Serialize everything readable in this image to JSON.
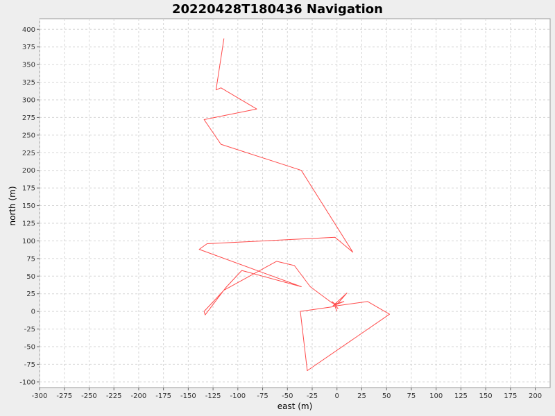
{
  "chart_data": {
    "type": "line",
    "title": "20220428T180436 Navigation",
    "xlabel": "east (m)",
    "ylabel": "north (m)",
    "xlim": [
      -300,
      215
    ],
    "ylim": [
      -108,
      415
    ],
    "xticks": [
      -300,
      -275,
      -250,
      -225,
      -200,
      -175,
      -150,
      -125,
      -100,
      -75,
      -50,
      -25,
      0,
      25,
      50,
      75,
      100,
      125,
      150,
      175,
      200
    ],
    "yticks": [
      -100,
      -75,
      -50,
      -25,
      0,
      25,
      50,
      75,
      100,
      125,
      150,
      175,
      200,
      225,
      250,
      275,
      300,
      325,
      350,
      375,
      400
    ],
    "grid": true,
    "series": [
      {
        "color": "#ff4a4a",
        "points": [
          [
            -114,
            387
          ],
          [
            -122,
            314
          ],
          [
            -117,
            317
          ],
          [
            -81,
            287
          ],
          [
            -134,
            272
          ],
          [
            -117,
            237
          ],
          [
            -36,
            200
          ],
          [
            16,
            84
          ],
          [
            -2,
            105
          ],
          [
            -131,
            96
          ],
          [
            -139,
            88
          ],
          [
            -36,
            35
          ],
          [
            -96,
            58
          ],
          [
            -112,
            34
          ],
          [
            -133,
            -5
          ],
          [
            -134,
            0
          ],
          [
            -114,
            30
          ],
          [
            -61,
            71
          ],
          [
            -43,
            65
          ],
          [
            -27,
            35
          ],
          [
            -5,
            12
          ],
          [
            0,
            10
          ],
          [
            10,
            26
          ],
          [
            -4,
            8
          ],
          [
            7,
            14
          ],
          [
            -3,
            10
          ],
          [
            1,
            4
          ],
          [
            -5,
            14
          ],
          [
            0,
            8
          ],
          [
            31,
            14
          ],
          [
            53,
            -4
          ],
          [
            -30,
            -84
          ],
          [
            -37,
            0
          ],
          [
            -2,
            7
          ],
          [
            0,
            0
          ]
        ]
      }
    ]
  }
}
